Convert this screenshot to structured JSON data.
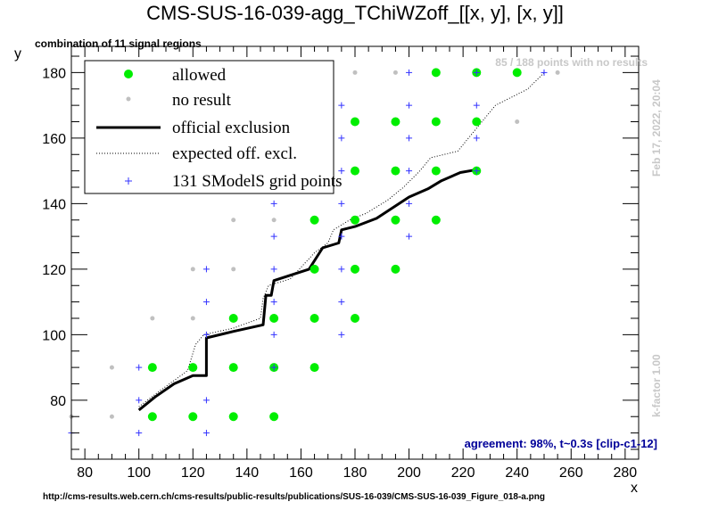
{
  "chart_data": {
    "type": "scatter",
    "title": "CMS-SUS-16-039-agg_TChiWZoff_[[x, y], [x, y]]",
    "subtitle": "combination of 11 signal regions",
    "xlabel": "x",
    "ylabel": "y",
    "xlim": [
      75,
      285
    ],
    "ylim": [
      62,
      188
    ],
    "xticks": [
      80,
      100,
      120,
      140,
      160,
      180,
      200,
      220,
      240,
      260,
      280
    ],
    "yticks": [
      80,
      100,
      120,
      140,
      160,
      180
    ],
    "grid": false,
    "legend_placement": "top-left",
    "legend": [
      {
        "key": "allowed",
        "label": "allowed"
      },
      {
        "key": "noresult",
        "label": "no result"
      },
      {
        "key": "official",
        "label": "official exclusion"
      },
      {
        "key": "expected",
        "label": "expected off. excl."
      },
      {
        "key": "grid",
        "label": "131 SModelS grid points"
      }
    ],
    "annotations": {
      "no_results": "85 / 188 points with no results",
      "date": "Feb 17, 2022, 20:04",
      "kfactor": "k-factor 1.00",
      "agreement": "agreement: 98%, t~0.3s [clip-c1-12]",
      "url": "http://cms-results.web.cern.ch/cms-results/public-results/publications/SUS-16-039/CMS-SUS-16-039_Figure_018-a.png"
    },
    "colors": {
      "allowed": "#00ee00",
      "noresult": "#c0c0c0",
      "grid": "#3333ff",
      "official": "#000000",
      "expected": "#000000",
      "agreement": "#000099",
      "annotation_gray": "#c8c8c8"
    },
    "allowed": [
      [
        105,
        75
      ],
      [
        120,
        75
      ],
      [
        135,
        75
      ],
      [
        150,
        75
      ],
      [
        105,
        90
      ],
      [
        120,
        90
      ],
      [
        135,
        90
      ],
      [
        150,
        90
      ],
      [
        165,
        90
      ],
      [
        135,
        105
      ],
      [
        150,
        105
      ],
      [
        165,
        105
      ],
      [
        180,
        105
      ],
      [
        165,
        120
      ],
      [
        180,
        120
      ],
      [
        195,
        120
      ],
      [
        165,
        135
      ],
      [
        180,
        135
      ],
      [
        195,
        135
      ],
      [
        210,
        135
      ],
      [
        180,
        150
      ],
      [
        195,
        150
      ],
      [
        210,
        150
      ],
      [
        225,
        150
      ],
      [
        180,
        165
      ],
      [
        195,
        165
      ],
      [
        210,
        165
      ],
      [
        225,
        165
      ],
      [
        210,
        180
      ],
      [
        225,
        180
      ],
      [
        240,
        180
      ]
    ],
    "no_result": [
      [
        75,
        75
      ],
      [
        90,
        75
      ],
      [
        90,
        90
      ],
      [
        105,
        105
      ],
      [
        120,
        105
      ],
      [
        120,
        120
      ],
      [
        135,
        120
      ],
      [
        135,
        135
      ],
      [
        150,
        135
      ],
      [
        150,
        150
      ],
      [
        165,
        150
      ],
      [
        165,
        165
      ],
      [
        180,
        180
      ],
      [
        195,
        180
      ],
      [
        240,
        165
      ],
      [
        255,
        180
      ]
    ],
    "smodels_grid": [
      [
        75,
        70
      ],
      [
        100,
        70
      ],
      [
        125,
        70
      ],
      [
        100,
        80
      ],
      [
        125,
        80
      ],
      [
        100,
        90
      ],
      [
        150,
        90
      ],
      [
        125,
        100
      ],
      [
        150,
        100
      ],
      [
        175,
        100
      ],
      [
        125,
        110
      ],
      [
        150,
        110
      ],
      [
        175,
        110
      ],
      [
        125,
        120
      ],
      [
        150,
        120
      ],
      [
        175,
        120
      ],
      [
        150,
        130
      ],
      [
        175,
        130
      ],
      [
        200,
        130
      ],
      [
        150,
        140
      ],
      [
        175,
        140
      ],
      [
        200,
        140
      ],
      [
        175,
        150
      ],
      [
        200,
        150
      ],
      [
        225,
        150
      ],
      [
        175,
        160
      ],
      [
        200,
        160
      ],
      [
        225,
        160
      ],
      [
        175,
        170
      ],
      [
        200,
        170
      ],
      [
        225,
        170
      ],
      [
        200,
        180
      ],
      [
        225,
        180
      ],
      [
        250,
        180
      ]
    ],
    "official_exclusion": [
      [
        100,
        77
      ],
      [
        106,
        81
      ],
      [
        113,
        85
      ],
      [
        120,
        87.5
      ],
      [
        125,
        87.5
      ],
      [
        125,
        99
      ],
      [
        135,
        101
      ],
      [
        146,
        103
      ],
      [
        147,
        112
      ],
      [
        149,
        112
      ],
      [
        150,
        116.5
      ],
      [
        163,
        120
      ],
      [
        168,
        126.5
      ],
      [
        174,
        128
      ],
      [
        175,
        132
      ],
      [
        180,
        133
      ],
      [
        188,
        135.5
      ],
      [
        200,
        142
      ],
      [
        207,
        144.5
      ],
      [
        212,
        147
      ],
      [
        219,
        149.5
      ],
      [
        226,
        150.5
      ]
    ],
    "expected_exclusion": [
      [
        100,
        78
      ],
      [
        108,
        83
      ],
      [
        113,
        86
      ],
      [
        118,
        89
      ],
      [
        121,
        97
      ],
      [
        124,
        100
      ],
      [
        135,
        102
      ],
      [
        145,
        105
      ],
      [
        146,
        111
      ],
      [
        148,
        115
      ],
      [
        156,
        117
      ],
      [
        165,
        125
      ],
      [
        170,
        128
      ],
      [
        172,
        132
      ],
      [
        178,
        135
      ],
      [
        184,
        137
      ],
      [
        192,
        141
      ],
      [
        198,
        145
      ],
      [
        204,
        150
      ],
      [
        208,
        154
      ],
      [
        218,
        156
      ],
      [
        222,
        160
      ],
      [
        226,
        164
      ],
      [
        232,
        170
      ],
      [
        244,
        175
      ],
      [
        250,
        180
      ]
    ]
  }
}
